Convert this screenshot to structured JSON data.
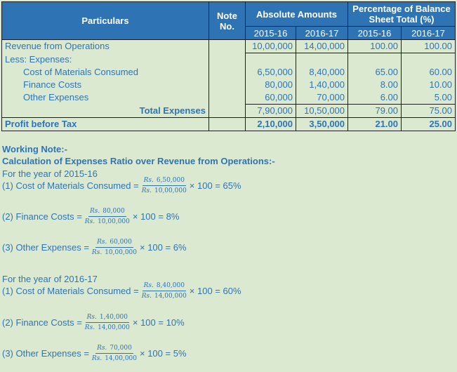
{
  "table": {
    "headers": {
      "particulars": "Particulars",
      "note": "Note No.",
      "absolute": "Absolute Amounts",
      "percentage": "Percentage of Balance Sheet Total (%)"
    },
    "years": [
      "2015-16",
      "2016-17",
      "2015-16",
      "2016-17"
    ],
    "rows": [
      {
        "label": "Revenue from Operations",
        "vals": [
          "10,00,000",
          "14,00,000",
          "100.00",
          "100.00"
        ]
      },
      {
        "label": "Less: Expenses:",
        "vals": [
          "",
          "",
          "",
          ""
        ]
      },
      {
        "label": "Cost of Materials Consumed",
        "vals": [
          "6,50,000",
          "8,40,000",
          "65.00",
          "60.00"
        ]
      },
      {
        "label": "Finance Costs",
        "vals": [
          "80,000",
          "1,40,000",
          "8.00",
          "10.00"
        ]
      },
      {
        "label": "Other Expenses",
        "vals": [
          "60,000",
          "70,000",
          "6.00",
          "5.00"
        ]
      },
      {
        "label": "Total Expenses",
        "vals": [
          "7,90,000",
          "10,50,000",
          "79.00",
          "75.00"
        ]
      },
      {
        "label": "Profit before Tax",
        "vals": [
          "2,10,000",
          "3,50,000",
          "21.00",
          "25.00"
        ]
      }
    ]
  },
  "notes": {
    "title": "Working Note:-",
    "subtitle": "Calculation of Expenses Ratio over Revenue from Operations:-",
    "rs": "Rs.",
    "times": "× 100 =",
    "y1": {
      "heading": "For the year of 2015-16",
      "items": [
        {
          "label": "(1) Cost of Materials Consumed =",
          "num": "6,50,000",
          "den": "10,00,000",
          "result": "65%"
        },
        {
          "label": "(2) Finance Costs =",
          "num": "80,000",
          "den": "10,00,000",
          "result": "8%"
        },
        {
          "label": "(3) Other Expenses =",
          "num": "60,000",
          "den": "10,00,000",
          "result": "6%"
        }
      ]
    },
    "y2": {
      "heading": "For the year of 2016-17",
      "items": [
        {
          "label": "(1) Cost of Materials Consumed =",
          "num": "8,40,000",
          "den": "14,00,000",
          "result": "60%"
        },
        {
          "label": "(2) Finance Costs =",
          "num": "1,40,000",
          "den": "14,00,000",
          "result": "10%"
        },
        {
          "label": "(3) Other Expenses =",
          "num": "70,000",
          "den": "14,00,000",
          "result": "5%"
        }
      ]
    }
  }
}
